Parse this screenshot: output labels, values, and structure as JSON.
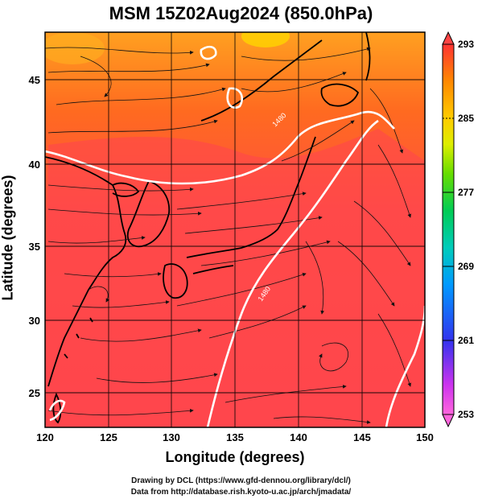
{
  "title": "MSM 15Z02Aug2024 (850.0hPa)",
  "x_axis": {
    "label": "Longitude (degrees)",
    "ticks": [
      "120",
      "125",
      "130",
      "135",
      "140",
      "145",
      "150"
    ]
  },
  "y_axis": {
    "label": "Latitude  (degrees)",
    "ticks": [
      "25",
      "30",
      "35",
      "40",
      "45"
    ]
  },
  "colorbar": {
    "ticks": [
      "293",
      "285",
      "277",
      "269",
      "261",
      "253"
    ],
    "colors": [
      "#ff66cc",
      "#cc33ff",
      "#3333ff",
      "#0099ff",
      "#00cccc",
      "#00cc66",
      "#66dd00",
      "#ccee00",
      "#ffdd00",
      "#ffaa00",
      "#ff7700",
      "#ff4444",
      "#ff3333"
    ]
  },
  "contour_labels": [
    "1480",
    "1480",
    "1480"
  ],
  "credits": {
    "line1": "Drawing by DCL (https://www.gfd-dennou.org/library/dcl/)",
    "line2": "Data from http://database.rish.kyoto-u.ac.jp/arch/jmadata/"
  }
}
